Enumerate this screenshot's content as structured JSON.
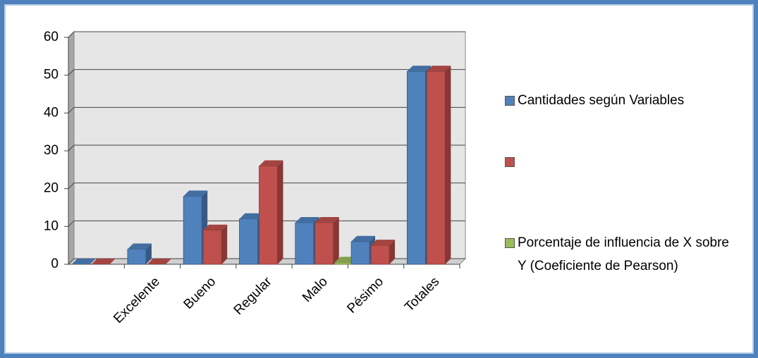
{
  "chart_data": {
    "type": "bar3d",
    "categories": [
      null,
      "Excelente",
      "Bueno",
      "Regular",
      "Malo",
      "Pésimo",
      "Totales"
    ],
    "series": [
      {
        "name": "Cantidades según Variables",
        "color": "#4f81bd",
        "values": [
          0,
          4,
          18,
          12,
          11,
          6,
          51
        ]
      },
      {
        "name": null,
        "color": "#c0504d",
        "values": [
          0,
          0,
          9,
          26,
          11,
          5,
          51
        ]
      },
      {
        "name": "Porcentaje de influencia de X sobre Y (Coeficiente de Pearson)",
        "color": "#9bbb59",
        "values": [
          null,
          null,
          null,
          null,
          0.5,
          null,
          null
        ]
      }
    ],
    "ylim": [
      0,
      60
    ],
    "yticks": [
      0,
      10,
      20,
      30,
      40,
      50,
      60
    ],
    "grid": true,
    "legend": "right"
  }
}
